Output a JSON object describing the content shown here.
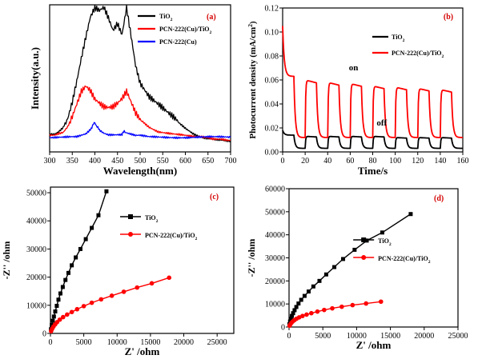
{
  "chart_data": [
    {
      "type": "line",
      "panel_label": "(a)",
      "xlabel": "Wavelength(nm)",
      "ylabel": "Intensity(a.u.)",
      "xlim": [
        300,
        700
      ],
      "xticks": [
        300,
        350,
        400,
        450,
        500,
        550,
        600,
        650,
        700
      ],
      "ylim": [
        0,
        1
      ],
      "y_ticks_labeled": false,
      "legend_position": "top-left",
      "series": [
        {
          "name": "TiO₂",
          "color": "#000000",
          "x": [
            300,
            310,
            320,
            330,
            340,
            350,
            360,
            370,
            380,
            390,
            400,
            410,
            420,
            430,
            440,
            450,
            460,
            470,
            480,
            490,
            500,
            520,
            540,
            560,
            580,
            600,
            620,
            640,
            660,
            680,
            700
          ],
          "y": [
            0.12,
            0.12,
            0.14,
            0.17,
            0.24,
            0.35,
            0.49,
            0.64,
            0.78,
            0.91,
            0.97,
            0.95,
            0.97,
            0.9,
            0.82,
            0.87,
            0.8,
            0.99,
            0.8,
            0.6,
            0.48,
            0.38,
            0.32,
            0.26,
            0.21,
            0.16,
            0.12,
            0.1,
            0.09,
            0.08,
            0.07
          ]
        },
        {
          "name": "PCN-222(Cu)/TiO₂",
          "color": "#ff0000",
          "x": [
            300,
            310,
            320,
            330,
            340,
            350,
            360,
            370,
            380,
            390,
            400,
            410,
            420,
            430,
            440,
            450,
            460,
            470,
            480,
            490,
            500,
            520,
            540,
            560,
            580,
            600,
            620,
            640,
            660,
            680,
            700
          ],
          "y": [
            0.11,
            0.11,
            0.12,
            0.13,
            0.17,
            0.24,
            0.33,
            0.42,
            0.46,
            0.43,
            0.37,
            0.34,
            0.31,
            0.3,
            0.3,
            0.32,
            0.35,
            0.4,
            0.33,
            0.26,
            0.22,
            0.17,
            0.14,
            0.13,
            0.12,
            0.11,
            0.1,
            0.1,
            0.09,
            0.09,
            0.08
          ]
        },
        {
          "name": "PCN-222(Cu)",
          "color": "#0000ff",
          "x": [
            300,
            320,
            340,
            360,
            370,
            380,
            390,
            395,
            400,
            405,
            410,
            420,
            430,
            440,
            450,
            460,
            465,
            470,
            480,
            490,
            500,
            520,
            540,
            560,
            580,
            600,
            620,
            640,
            660,
            680,
            700
          ],
          "y": [
            0.1,
            0.1,
            0.1,
            0.1,
            0.11,
            0.12,
            0.15,
            0.18,
            0.2,
            0.17,
            0.15,
            0.13,
            0.12,
            0.12,
            0.12,
            0.12,
            0.14,
            0.13,
            0.12,
            0.11,
            0.11,
            0.1,
            0.1,
            0.1,
            0.1,
            0.1,
            0.1,
            0.1,
            0.1,
            0.1,
            0.1
          ]
        }
      ]
    },
    {
      "type": "line",
      "panel_label": "(b)",
      "xlabel": "Time/s",
      "ylabel": "Photocurrent density (mA/cm²)",
      "xlim": [
        0,
        160
      ],
      "xticks": [
        0,
        20,
        40,
        60,
        80,
        100,
        120,
        140,
        160
      ],
      "ylim": [
        0.0,
        0.12
      ],
      "yticks": [
        "0.00",
        "0.02",
        "0.04",
        "0.06",
        "0.08",
        "0.10",
        "0.12"
      ],
      "legend_position": "top-right",
      "annotations": [
        {
          "text": "on",
          "x": 63,
          "y": 0.068
        },
        {
          "text": "off",
          "x": 88,
          "y": 0.022
        }
      ],
      "light_cycles": {
        "on_intervals": [
          [
            0,
            10
          ],
          [
            20,
            30
          ],
          [
            40,
            50
          ],
          [
            60,
            70
          ],
          [
            80,
            90
          ],
          [
            100,
            110
          ],
          [
            120,
            130
          ],
          [
            140,
            150
          ]
        ],
        "off_intervals": [
          [
            10,
            20
          ],
          [
            30,
            40
          ],
          [
            50,
            60
          ],
          [
            70,
            80
          ],
          [
            90,
            100
          ],
          [
            110,
            120
          ],
          [
            130,
            140
          ],
          [
            150,
            160
          ]
        ]
      },
      "series": [
        {
          "name": "TiO₂",
          "color": "#000000",
          "initial_spike": 0.018,
          "on_plateau": [
            0.014,
            0.013,
            0.013,
            0.013,
            0.013,
            0.012,
            0.012,
            0.012
          ],
          "off_level": 0.003
        },
        {
          "name": "PCN-222(Cu)/TiO₂",
          "color": "#ff0000",
          "initial_spike": 0.105,
          "on_plateau": [
            0.063,
            0.06,
            0.058,
            0.057,
            0.055,
            0.054,
            0.053,
            0.052
          ],
          "off_level": 0.012
        }
      ]
    },
    {
      "type": "scatter",
      "panel_label": "(c)",
      "xlabel": "Z' /ohm",
      "ylabel": "-Z'' /ohm",
      "xlim": [
        0,
        27500
      ],
      "xticks": [
        0,
        5000,
        10000,
        15000,
        20000,
        25000
      ],
      "ylim": [
        0,
        52000
      ],
      "yticks": [
        0,
        10000,
        20000,
        30000,
        40000,
        50000
      ],
      "legend_position": "center-right",
      "series": [
        {
          "name": "TiO₂",
          "color": "#000000",
          "marker": "square",
          "x": [
            0,
            80,
            200,
            350,
            520,
            720,
            950,
            1200,
            1500,
            1850,
            2250,
            2700,
            3200,
            3800,
            4500,
            5300,
            6200,
            7200,
            8400
          ],
          "y": [
            0,
            1500,
            3000,
            4500,
            6000,
            7800,
            9800,
            12000,
            14200,
            16500,
            19000,
            21500,
            24200,
            27000,
            30000,
            33500,
            37500,
            42000,
            50500
          ]
        },
        {
          "name": "PCN-222(Cu)/TiO₂",
          "color": "#ff0000",
          "marker": "circle",
          "x": [
            0,
            100,
            250,
            450,
            700,
            1000,
            1400,
            1900,
            2500,
            3200,
            4000,
            5000,
            6200,
            7600,
            9200,
            11000,
            13000,
            15200,
            17800
          ],
          "y": [
            0,
            800,
            1600,
            2400,
            3200,
            4000,
            4900,
            5800,
            6700,
            7600,
            8600,
            9700,
            10900,
            12100,
            13400,
            14800,
            16300,
            17800,
            19800
          ]
        }
      ]
    },
    {
      "type": "scatter",
      "panel_label": "(d)",
      "xlabel": "Z' /ohm",
      "ylabel": "-Z'' /ohm",
      "xlim": [
        0,
        25000
      ],
      "xticks": [
        0,
        5000,
        10000,
        15000,
        20000,
        25000
      ],
      "ylim": [
        0,
        60000
      ],
      "yticks": [
        0,
        10000,
        20000,
        30000,
        40000,
        50000,
        60000
      ],
      "legend_position": "center-right",
      "series": [
        {
          "name": "TiO₂",
          "color": "#000000",
          "marker": "square",
          "x": [
            0,
            60,
            150,
            270,
            420,
            600,
            820,
            1080,
            1400,
            1800,
            2300,
            2900,
            3600,
            4500,
            5500,
            6700,
            8000,
            9700,
            11500,
            13800,
            18000
          ],
          "y": [
            0,
            1200,
            2400,
            3600,
            4800,
            6000,
            7300,
            8700,
            10200,
            11800,
            13500,
            15400,
            17600,
            20000,
            22800,
            26000,
            29500,
            33500,
            37500,
            41000,
            49000
          ]
        },
        {
          "name": "PCN-222(Cu)/TiO₂",
          "color": "#ff0000",
          "marker": "circle",
          "x": [
            0,
            80,
            200,
            350,
            550,
            800,
            1100,
            1500,
            2000,
            2600,
            3300,
            4200,
            5200,
            6400,
            7800,
            9400,
            11400,
            13600
          ],
          "y": [
            0,
            600,
            1200,
            1800,
            2400,
            3000,
            3600,
            4200,
            4800,
            5400,
            6000,
            6700,
            7400,
            8100,
            8800,
            9500,
            10200,
            11000
          ]
        }
      ]
    }
  ]
}
